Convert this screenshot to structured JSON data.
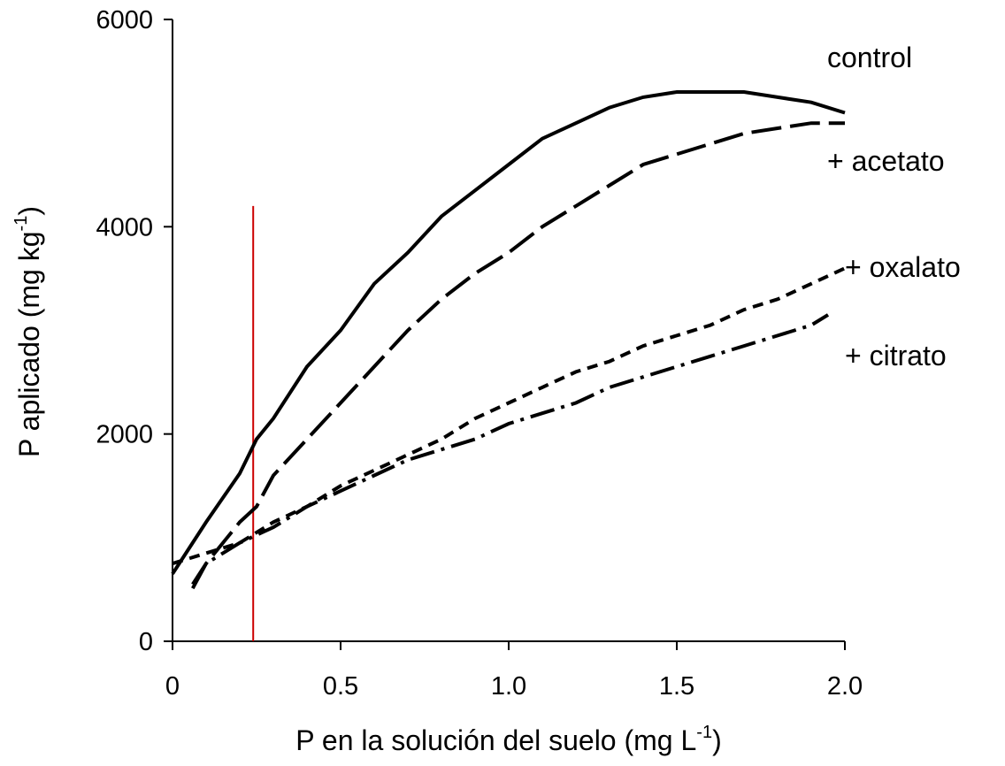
{
  "chart_data": {
    "type": "line",
    "x_label": {
      "text": "P en la solución del suelo (mg L",
      "sup": "-1",
      "end": ")"
    },
    "y_label": {
      "text": "P aplicado (mg kg",
      "sup": "-1",
      "end": ")"
    },
    "xlim": [
      0,
      2
    ],
    "xticks": [
      0,
      0.5,
      {
        "value": 1,
        "label": "1.0"
      },
      1.5,
      {
        "value": 2,
        "label": "2.0"
      }
    ],
    "ylim": [
      0,
      6000
    ],
    "yticks": [
      0,
      2000,
      4000,
      6000
    ],
    "vline": {
      "x": 0.24,
      "ymax": 4200,
      "color": "#cc0000"
    },
    "series": [
      {
        "name": "control",
        "color": "#000000",
        "dash": "solid",
        "x": [
          0,
          0.05,
          0.1,
          0.2,
          0.25,
          0.3,
          0.4,
          0.5,
          0.6,
          0.7,
          0.8,
          0.9,
          1.0,
          1.1,
          1.2,
          1.3,
          1.4,
          1.5,
          1.6,
          1.7,
          1.8,
          1.9,
          2.0
        ],
        "values": [
          650,
          900,
          1150,
          1620,
          1950,
          2150,
          2650,
          3000,
          3450,
          3750,
          4100,
          4350,
          4600,
          4850,
          5000,
          5150,
          5250,
          5300,
          5300,
          5300,
          5250,
          5200,
          5100
        ]
      },
      {
        "name": "+ acetato",
        "color": "#000000",
        "dash": "long",
        "x": [
          0.06,
          0.1,
          0.15,
          0.2,
          0.25,
          0.3,
          0.4,
          0.5,
          0.6,
          0.7,
          0.8,
          0.9,
          1.0,
          1.1,
          1.2,
          1.3,
          1.4,
          1.5,
          1.6,
          1.7,
          1.8,
          1.9,
          2.0
        ],
        "values": [
          510,
          750,
          950,
          1150,
          1300,
          1600,
          1950,
          2300,
          2650,
          3000,
          3300,
          3550,
          3750,
          4000,
          4200,
          4400,
          4600,
          4700,
          4800,
          4900,
          4950,
          5000,
          5000
        ]
      },
      {
        "name": "+ oxalato",
        "color": "#000000",
        "dash": "short",
        "x": [
          0,
          0.05,
          0.1,
          0.2,
          0.3,
          0.4,
          0.5,
          0.6,
          0.7,
          0.8,
          0.9,
          1.0,
          1.1,
          1.2,
          1.3,
          1.4,
          1.5,
          1.6,
          1.7,
          1.8,
          1.9,
          2.0
        ],
        "values": [
          750,
          800,
          850,
          950,
          1150,
          1300,
          1500,
          1650,
          1800,
          1950,
          2150,
          2300,
          2450,
          2600,
          2700,
          2850,
          2950,
          3050,
          3200,
          3300,
          3450,
          3600
        ]
      },
      {
        "name": "+ citrato",
        "color": "#000000",
        "dash": "dashdot",
        "x": [
          0.06,
          0.1,
          0.2,
          0.3,
          0.4,
          0.5,
          0.6,
          0.7,
          0.8,
          0.9,
          1.0,
          1.1,
          1.2,
          1.3,
          1.4,
          1.5,
          1.6,
          1.7,
          1.8,
          1.9,
          1.95
        ],
        "values": [
          550,
          750,
          950,
          1100,
          1300,
          1450,
          1600,
          1750,
          1850,
          1950,
          2100,
          2200,
          2300,
          2450,
          2550,
          2650,
          2750,
          2850,
          2950,
          3050,
          3150
        ]
      }
    ]
  }
}
